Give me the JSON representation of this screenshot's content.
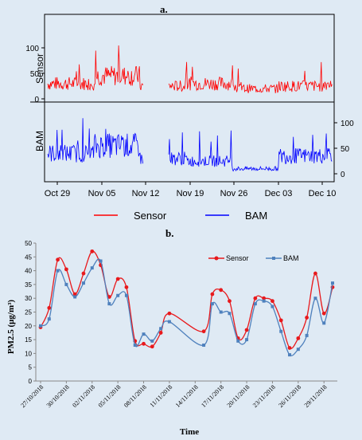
{
  "colors": {
    "background": "#dfeaf4",
    "sensor": "#ff0000",
    "bam": "#0000ff",
    "b_sensor": "#e8191c",
    "b_bam": "#4f81bd"
  },
  "panel_a": {
    "label": "a.",
    "strip_labels": [
      "Sensor",
      "BAM"
    ],
    "y_ticks_sensor": [
      "100",
      "50",
      "0"
    ],
    "y_ticks_bam": [
      "100",
      "50",
      "0"
    ],
    "x_ticks": [
      "Oct 29",
      "Nov 05",
      "Nov 12",
      "Nov 19",
      "Nov 26",
      "Dec 03",
      "Dec 10"
    ],
    "legend": [
      "Sensor",
      "BAM"
    ]
  },
  "panel_b": {
    "label": "b.",
    "y_axis_label": "PM2.5 (μg/m³)",
    "x_axis_label": "Time",
    "legend": [
      "Sensor",
      "BAM"
    ]
  },
  "chart_data": [
    {
      "type": "line",
      "panel": "a",
      "x": [
        "Oct 29",
        "Nov 05",
        "Nov 12",
        "Nov 19",
        "Nov 26",
        "Dec 03",
        "Dec 10"
      ],
      "series": [
        {
          "name": "Sensor",
          "ylim": [
            0,
            130
          ],
          "approx_level": [
            30,
            45,
            25,
            30,
            20,
            25,
            30
          ]
        },
        {
          "name": "BAM",
          "ylim": [
            0,
            110
          ],
          "approx_level": [
            40,
            55,
            30,
            25,
            10,
            35,
            40
          ]
        }
      ],
      "gap": [
        "Nov 12",
        "Nov 16"
      ]
    },
    {
      "type": "line",
      "panel": "b",
      "ylim": [
        0,
        50
      ],
      "y_ticks": [
        0,
        5,
        10,
        15,
        20,
        25,
        30,
        35,
        40,
        45,
        50
      ],
      "x_ticks": [
        "27/10/2018",
        "30/10/2018",
        "02/11/2018",
        "05/11/2018",
        "08/11/2018",
        "11/11/2018",
        "14/11/2018",
        "17/11/2018",
        "20/11/2018",
        "23/11/2018",
        "26/11/2018",
        "29/11/2018"
      ],
      "series": [
        {
          "name": "Sensor",
          "points": [
            [
              0,
              19.5
            ],
            [
              1,
              26.5
            ],
            [
              2,
              44
            ],
            [
              3,
              40.5
            ],
            [
              4,
              31.5
            ],
            [
              5,
              39
            ],
            [
              6,
              47
            ],
            [
              7,
              42
            ],
            [
              8,
              30.5
            ],
            [
              9,
              37
            ],
            [
              10,
              34
            ],
            [
              11,
              14.5
            ],
            [
              12,
              13.5
            ],
            [
              13,
              12.5
            ],
            [
              14,
              17.5
            ],
            [
              15,
              24.5
            ],
            [
              19,
              18
            ],
            [
              20,
              31.5
            ],
            [
              21,
              33
            ],
            [
              22,
              29
            ],
            [
              23,
              15.5
            ],
            [
              24,
              18.5
            ],
            [
              25,
              30
            ],
            [
              26,
              30
            ],
            [
              27,
              29
            ],
            [
              28,
              22
            ],
            [
              29,
              12
            ],
            [
              30,
              15.5
            ],
            [
              31,
              23
            ],
            [
              32,
              39
            ],
            [
              33,
              24.5
            ],
            [
              34,
              34
            ]
          ]
        },
        {
          "name": "BAM",
          "points": [
            [
              0,
              20
            ],
            [
              1,
              22.5
            ],
            [
              2,
              40
            ],
            [
              3,
              35
            ],
            [
              4,
              30.5
            ],
            [
              5,
              35.5
            ],
            [
              6,
              41
            ],
            [
              7,
              43.5
            ],
            [
              8,
              28
            ],
            [
              9,
              31
            ],
            [
              10,
              31
            ],
            [
              11,
              13
            ],
            [
              12,
              17
            ],
            [
              13,
              14.5
            ],
            [
              14,
              19
            ],
            [
              15,
              21.5
            ],
            [
              19,
              13
            ],
            [
              20,
              28
            ],
            [
              21,
              25
            ],
            [
              22,
              24.5
            ],
            [
              23,
              14.5
            ],
            [
              24,
              15
            ],
            [
              25,
              28
            ],
            [
              26,
              29
            ],
            [
              27,
              27
            ],
            [
              28,
              18
            ],
            [
              29,
              9.5
            ],
            [
              30,
              11.5
            ],
            [
              31,
              16.5
            ],
            [
              32,
              30
            ],
            [
              33,
              21
            ],
            [
              34,
              35.5
            ]
          ]
        }
      ]
    }
  ]
}
